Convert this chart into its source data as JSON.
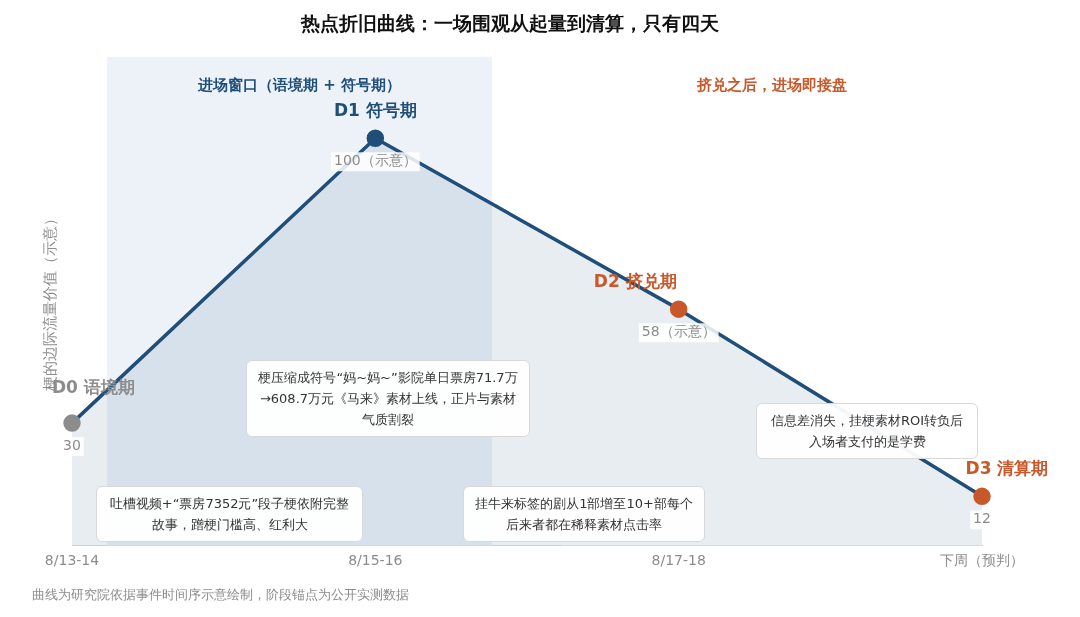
{
  "chart_data": {
    "type": "area",
    "title": "热点折旧曲线：一场围观从起量到清算，只有四天",
    "ylabel": "梗的边际流量价值（示意）",
    "categories": [
      "8/13-14",
      "8/15-16",
      "8/17-18",
      "下周（预判）"
    ],
    "series": [
      {
        "color": "#1f4e79",
        "colors": [
          "#8c8c8c",
          "#1f4e79",
          "#c8582a",
          "#c8582a"
        ],
        "values": [
          30,
          100,
          58,
          12
        ],
        "value_labels": [
          "30",
          "100（示意）",
          "58（示意）",
          "12"
        ]
      }
    ],
    "tick_labels": "x",
    "grid": false,
    "legend": false,
    "marker": "circle",
    "bands": [
      {
        "axis": "x",
        "from": "8/13-14",
        "to": "8/15-16",
        "label": "进场窗口（语境期 + 符号期）",
        "color": "#edf2f9"
      },
      {
        "axis": "x",
        "from": "8/17-18",
        "to": "下周（预判）",
        "label": "挤兑之后，进场即接盘",
        "color": "#ffffff"
      }
    ],
    "annotations": [
      {
        "text": "D0 语境期",
        "x": "8/13-14",
        "y": 30
      },
      {
        "text": "D1 符号期",
        "x": "8/15-16",
        "y": 100
      },
      {
        "text": "D2 挤兑期",
        "x": "8/17-18",
        "y": 58
      },
      {
        "text": "D3 清算期",
        "x": "下周（预判）",
        "y": 12
      },
      "梗压缩成符号“妈~妈~”影院单日票房71.7万→608.7万元《马来》素材上线，正片与素材气质割裂",
      "吐槽视频+“票房7352元”段子梗依附完整故事，蹭梗门槛高、红利大",
      "挂牛来标签的剧从1部增至10+部每个后来者都在稀释素材点击率",
      "信息差消失，挂梗素材ROI转负后入场者支付的是学费",
      "曲线为研究院依据事件时间序示意绘制，阶段锚点为公开实测数据"
    ]
  }
}
